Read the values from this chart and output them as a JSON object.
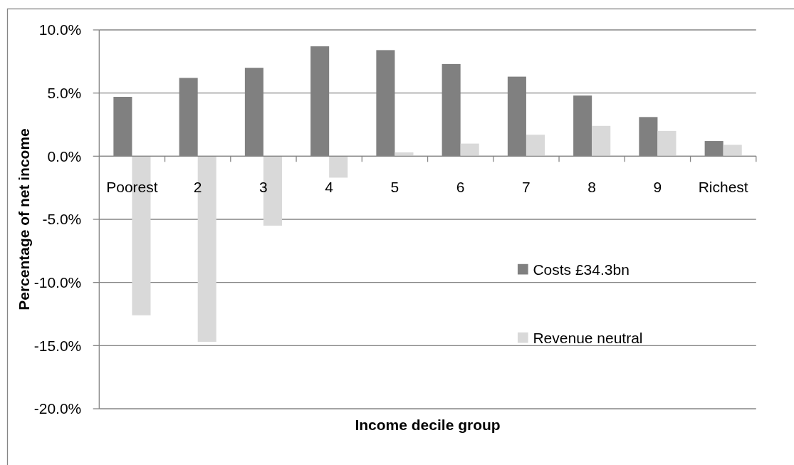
{
  "chart_data": {
    "type": "bar",
    "xlabel": "Income decile group",
    "ylabel": "Percentage of net income",
    "categories": [
      "Poorest",
      "2",
      "3",
      "4",
      "5",
      "6",
      "7",
      "8",
      "9",
      "Richest"
    ],
    "series": [
      {
        "name": "Costs £34.3bn",
        "color": "#808080",
        "values": [
          4.7,
          6.2,
          7.0,
          8.7,
          8.4,
          7.3,
          6.3,
          4.8,
          3.1,
          1.2
        ]
      },
      {
        "name": "Revenue neutral",
        "color": "#d9d9d9",
        "values": [
          -12.6,
          -14.7,
          -5.5,
          -1.7,
          0.3,
          1.0,
          1.7,
          2.4,
          2.0,
          0.9
        ]
      }
    ],
    "ylim": [
      -20,
      10
    ],
    "yticks": [
      {
        "value": -20,
        "label": "-20.0%"
      },
      {
        "value": -15,
        "label": "-15.0%"
      },
      {
        "value": -10,
        "label": "-10.0%"
      },
      {
        "value": -5,
        "label": "-5.0%"
      },
      {
        "value": 0,
        "label": "0.0%"
      },
      {
        "value": 5,
        "label": "5.0%"
      },
      {
        "value": 10,
        "label": "10.0%"
      }
    ],
    "grid": "y",
    "legend": "right"
  }
}
